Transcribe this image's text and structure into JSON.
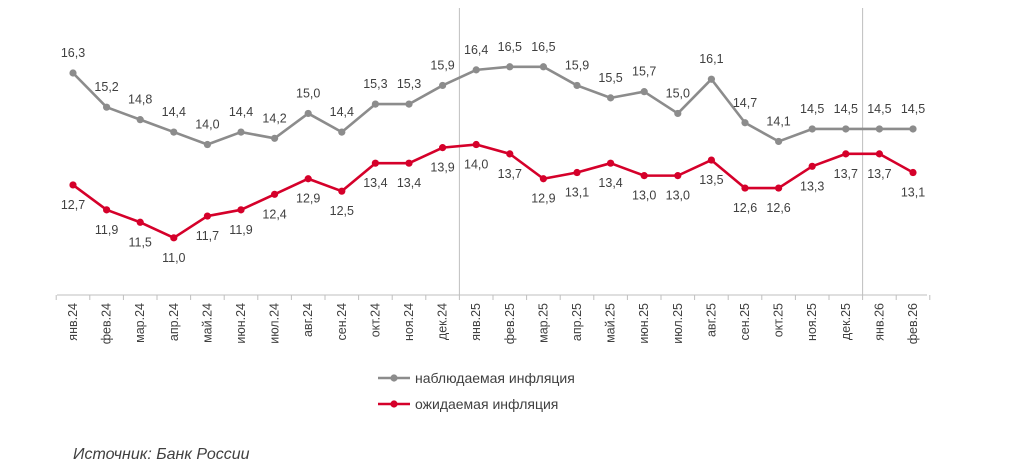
{
  "chart_data": {
    "type": "line",
    "categories": [
      "янв.24",
      "фев.24",
      "мар.24",
      "апр.24",
      "май.24",
      "июн.24",
      "июл.24",
      "авг.24",
      "сен.24",
      "окт.24",
      "ноя.24",
      "дек.24",
      "янв.25",
      "фев.25",
      "мар.25",
      "апр.25",
      "май.25",
      "июн.25",
      "июл.25",
      "авг.25",
      "сен.25",
      "окт.25",
      "ноя.25",
      "дек.25",
      "янв.26",
      "фев.26"
    ],
    "series": [
      {
        "name": "наблюдаемая инфляция",
        "color": "#8c8c8c",
        "values": [
          16.3,
          15.2,
          14.8,
          14.4,
          14.0,
          14.4,
          14.2,
          15.0,
          14.4,
          15.3,
          15.3,
          15.9,
          16.4,
          16.5,
          16.5,
          15.9,
          15.5,
          15.7,
          15.0,
          16.1,
          14.7,
          14.1,
          14.5,
          14.5,
          14.5,
          14.5
        ],
        "labels": [
          "16,3",
          "15,2",
          "14,8",
          "14,4",
          "14,0",
          "14,4",
          "14,2",
          "15,0",
          "14,4",
          "15,3",
          "15,3",
          "15,9",
          "16,4",
          "16,5",
          "16,5",
          "15,9",
          "15,5",
          "15,7",
          "15,0",
          "16,1",
          "14,7",
          "14,1",
          "14,5",
          "14,5",
          "14,5",
          "14,5"
        ]
      },
      {
        "name": "ожидаемая инфляция",
        "color": "#d5002a",
        "values": [
          12.7,
          11.9,
          11.5,
          11.0,
          11.7,
          11.9,
          12.4,
          12.9,
          12.5,
          13.4,
          13.4,
          13.9,
          14.0,
          13.7,
          12.9,
          13.1,
          13.4,
          13.0,
          13.0,
          13.5,
          12.6,
          12.6,
          13.3,
          13.7,
          13.7,
          13.1
        ],
        "labels": [
          "12,7",
          "11,9",
          "11,5",
          "11,0",
          "11,7",
          "11,9",
          "12,4",
          "12,9",
          "12,5",
          "13,4",
          "13,4",
          "13,9",
          "14,0",
          "13,7",
          "12,9",
          "13,1",
          "13,4",
          "13,0",
          "13,0",
          "13,5",
          "12,6",
          "12,6",
          "13,3",
          "13,7",
          "13,7",
          "13,1"
        ]
      }
    ],
    "year_separators_after": [
      "дек.24",
      "дек.25"
    ],
    "legend_position": "bottom-center",
    "grid": false,
    "axis_color": "#bfbfbf"
  },
  "source": "Источник: Банк России"
}
